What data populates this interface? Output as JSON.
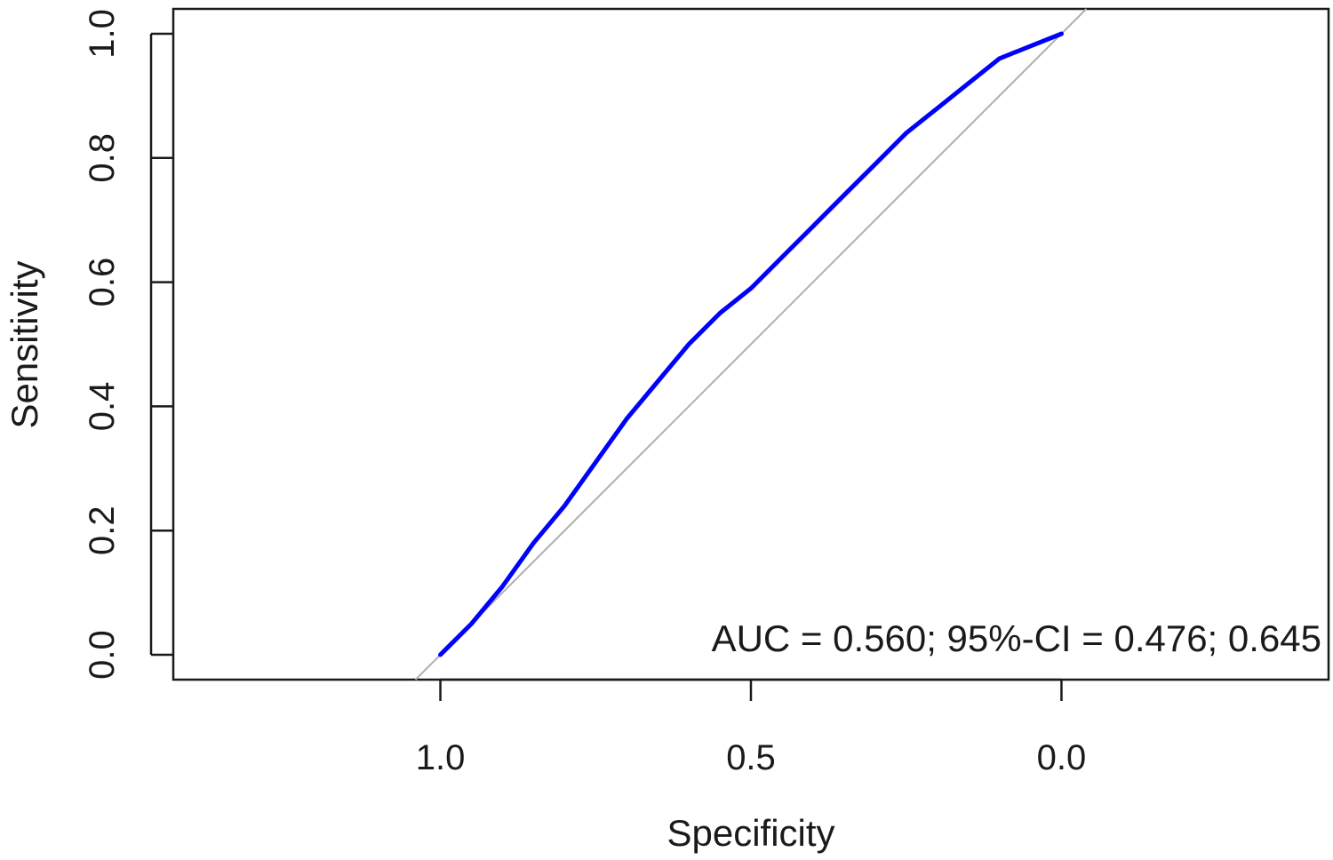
{
  "chart_data": {
    "type": "line",
    "xlabel": "Specificity",
    "ylabel": "Sensitivity",
    "x_reversed": true,
    "xlim": [
      1.43,
      -0.43
    ],
    "ylim": [
      -0.04,
      1.04
    ],
    "x_ticks": [
      {
        "value": 1.0,
        "label": "1.0"
      },
      {
        "value": 0.5,
        "label": "0.5"
      },
      {
        "value": 0.0,
        "label": "0.0"
      }
    ],
    "y_ticks": [
      {
        "value": 0.0,
        "label": "0.0"
      },
      {
        "value": 0.2,
        "label": "0.2"
      },
      {
        "value": 0.4,
        "label": "0.4"
      },
      {
        "value": 0.6,
        "label": "0.6"
      },
      {
        "value": 0.8,
        "label": "0.8"
      },
      {
        "value": 1.0,
        "label": "1.0"
      }
    ],
    "grid": false,
    "reference_line": {
      "from": {
        "specificity": 1.0,
        "sensitivity": 0.0
      },
      "to": {
        "specificity": 0.0,
        "sensitivity": 1.0
      },
      "color": "#b0b0b0"
    },
    "series": [
      {
        "color": "#0000ff",
        "points": [
          {
            "specificity": 1.0,
            "sensitivity": 0.0
          },
          {
            "specificity": 0.95,
            "sensitivity": 0.05
          },
          {
            "specificity": 0.9,
            "sensitivity": 0.11
          },
          {
            "specificity": 0.85,
            "sensitivity": 0.18
          },
          {
            "specificity": 0.8,
            "sensitivity": 0.24
          },
          {
            "specificity": 0.75,
            "sensitivity": 0.31
          },
          {
            "specificity": 0.7,
            "sensitivity": 0.38
          },
          {
            "specificity": 0.65,
            "sensitivity": 0.44
          },
          {
            "specificity": 0.6,
            "sensitivity": 0.5
          },
          {
            "specificity": 0.55,
            "sensitivity": 0.55
          },
          {
            "specificity": 0.5,
            "sensitivity": 0.59
          },
          {
            "specificity": 0.45,
            "sensitivity": 0.64
          },
          {
            "specificity": 0.4,
            "sensitivity": 0.69
          },
          {
            "specificity": 0.35,
            "sensitivity": 0.74
          },
          {
            "specificity": 0.3,
            "sensitivity": 0.79
          },
          {
            "specificity": 0.25,
            "sensitivity": 0.84
          },
          {
            "specificity": 0.2,
            "sensitivity": 0.88
          },
          {
            "specificity": 0.15,
            "sensitivity": 0.92
          },
          {
            "specificity": 0.1,
            "sensitivity": 0.96
          },
          {
            "specificity": 0.05,
            "sensitivity": 0.98
          },
          {
            "specificity": 0.0,
            "sensitivity": 1.0
          }
        ]
      }
    ],
    "annotation": {
      "text": "AUC = 0.560;   95%-CI = 0.476; 0.645"
    }
  }
}
